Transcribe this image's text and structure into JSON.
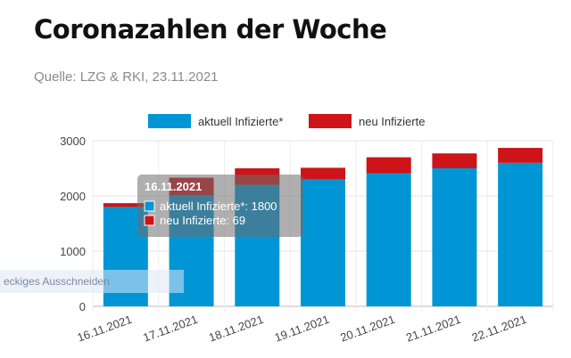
{
  "title": "Coronazahlen der Woche",
  "source": "Quelle: LZG & RKI, 23.11.2021",
  "snip_overlay_text": "eckiges Ausschneiden",
  "chart_data": {
    "type": "bar",
    "stacked": true,
    "categories": [
      "16.11.2021",
      "17.11.2021",
      "18.11.2021",
      "19.11.2021",
      "20.11.2021",
      "21.11.2021",
      "22.11.2021"
    ],
    "series": [
      {
        "name": "aktuell Infizierte*",
        "color": "#0096d6",
        "values": [
          1800,
          2010,
          2200,
          2300,
          2410,
          2500,
          2600
        ]
      },
      {
        "name": "neu Infizierte",
        "color": "#cc1419",
        "values": [
          69,
          320,
          300,
          210,
          290,
          270,
          270
        ]
      }
    ],
    "ylim": [
      0,
      3000
    ],
    "yticks": [
      0,
      1000,
      2000,
      3000
    ],
    "ytick_labels": [
      "0",
      "1000",
      "2000",
      "3000"
    ],
    "grid": true,
    "legend_position": "top-center",
    "tooltip": {
      "title": "16.11.2021",
      "line1": "aktuell Infizierte*: 1800",
      "line2": "neu Infizierte: 69"
    }
  }
}
